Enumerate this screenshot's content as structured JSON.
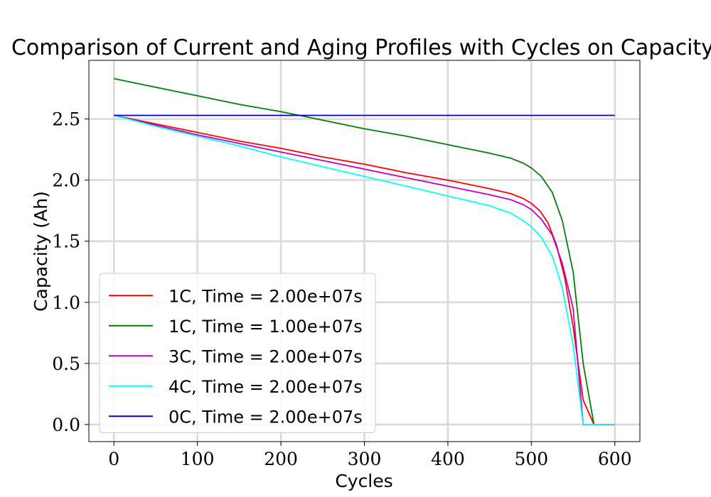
{
  "chart_data": {
    "type": "line",
    "title": "Comparison of Current and Aging Profiles with Cycles on Capacity",
    "xlabel": "Cycles",
    "ylabel": "Capacity (Ah)",
    "xlim": [
      -30,
      630
    ],
    "ylim": [
      -0.14,
      2.98
    ],
    "xticks": [
      0,
      100,
      200,
      300,
      400,
      500,
      600
    ],
    "yticks": [
      0.0,
      0.5,
      1.0,
      1.5,
      2.0,
      2.5
    ],
    "xtick_labels": [
      "0",
      "100",
      "200",
      "300",
      "400",
      "500",
      "600"
    ],
    "ytick_labels": [
      "0.0",
      "0.5",
      "1.0",
      "1.5",
      "2.0",
      "2.5"
    ],
    "grid": true,
    "legend_position": "lower-left",
    "series": [
      {
        "name": "1C, Time = 2.00e+07s",
        "color": "#ff0000",
        "x": [
          0,
          50,
          100,
          150,
          200,
          250,
          300,
          350,
          400,
          450,
          475,
          490,
          500,
          510,
          520,
          530,
          540,
          550,
          562,
          575,
          600
        ],
        "y": [
          2.53,
          2.46,
          2.39,
          2.32,
          2.26,
          2.19,
          2.13,
          2.06,
          2.0,
          1.93,
          1.89,
          1.85,
          1.81,
          1.75,
          1.65,
          1.47,
          1.2,
          0.8,
          0.2,
          0.0,
          0.0
        ]
      },
      {
        "name": "1C, Time = 1.00e+07s",
        "color": "#008000",
        "x": [
          0,
          50,
          100,
          150,
          200,
          250,
          300,
          350,
          400,
          450,
          475,
          490,
          500,
          512,
          525,
          537,
          550,
          562,
          575,
          600
        ],
        "y": [
          2.83,
          2.76,
          2.69,
          2.62,
          2.56,
          2.49,
          2.42,
          2.36,
          2.29,
          2.22,
          2.18,
          2.14,
          2.1,
          2.03,
          1.9,
          1.67,
          1.25,
          0.5,
          0.0,
          0.0
        ]
      },
      {
        "name": "3C, Time = 2.00e+07s",
        "color": "#bf00bf",
        "x": [
          0,
          50,
          100,
          150,
          200,
          250,
          300,
          350,
          400,
          450,
          475,
          490,
          500,
          512,
          525,
          537,
          550,
          562,
          575,
          600
        ],
        "y": [
          2.53,
          2.45,
          2.37,
          2.3,
          2.23,
          2.16,
          2.09,
          2.02,
          1.95,
          1.88,
          1.84,
          1.8,
          1.76,
          1.68,
          1.55,
          1.32,
          0.95,
          0.0,
          0.0,
          0.0
        ]
      },
      {
        "name": "4C, Time = 2.00e+07s",
        "color": "#00ffff",
        "x": [
          0,
          50,
          100,
          150,
          200,
          250,
          300,
          350,
          400,
          450,
          475,
          490,
          500,
          512,
          525,
          537,
          550,
          562,
          575,
          600
        ],
        "y": [
          2.53,
          2.44,
          2.36,
          2.28,
          2.19,
          2.11,
          2.03,
          1.95,
          1.87,
          1.79,
          1.73,
          1.67,
          1.62,
          1.53,
          1.38,
          1.12,
          0.65,
          0.0,
          0.0,
          0.0
        ]
      },
      {
        "name": "0C, Time = 2.00e+07s",
        "color": "#0000cc",
        "x": [
          0,
          600
        ],
        "y": [
          2.53,
          2.53
        ]
      }
    ]
  }
}
